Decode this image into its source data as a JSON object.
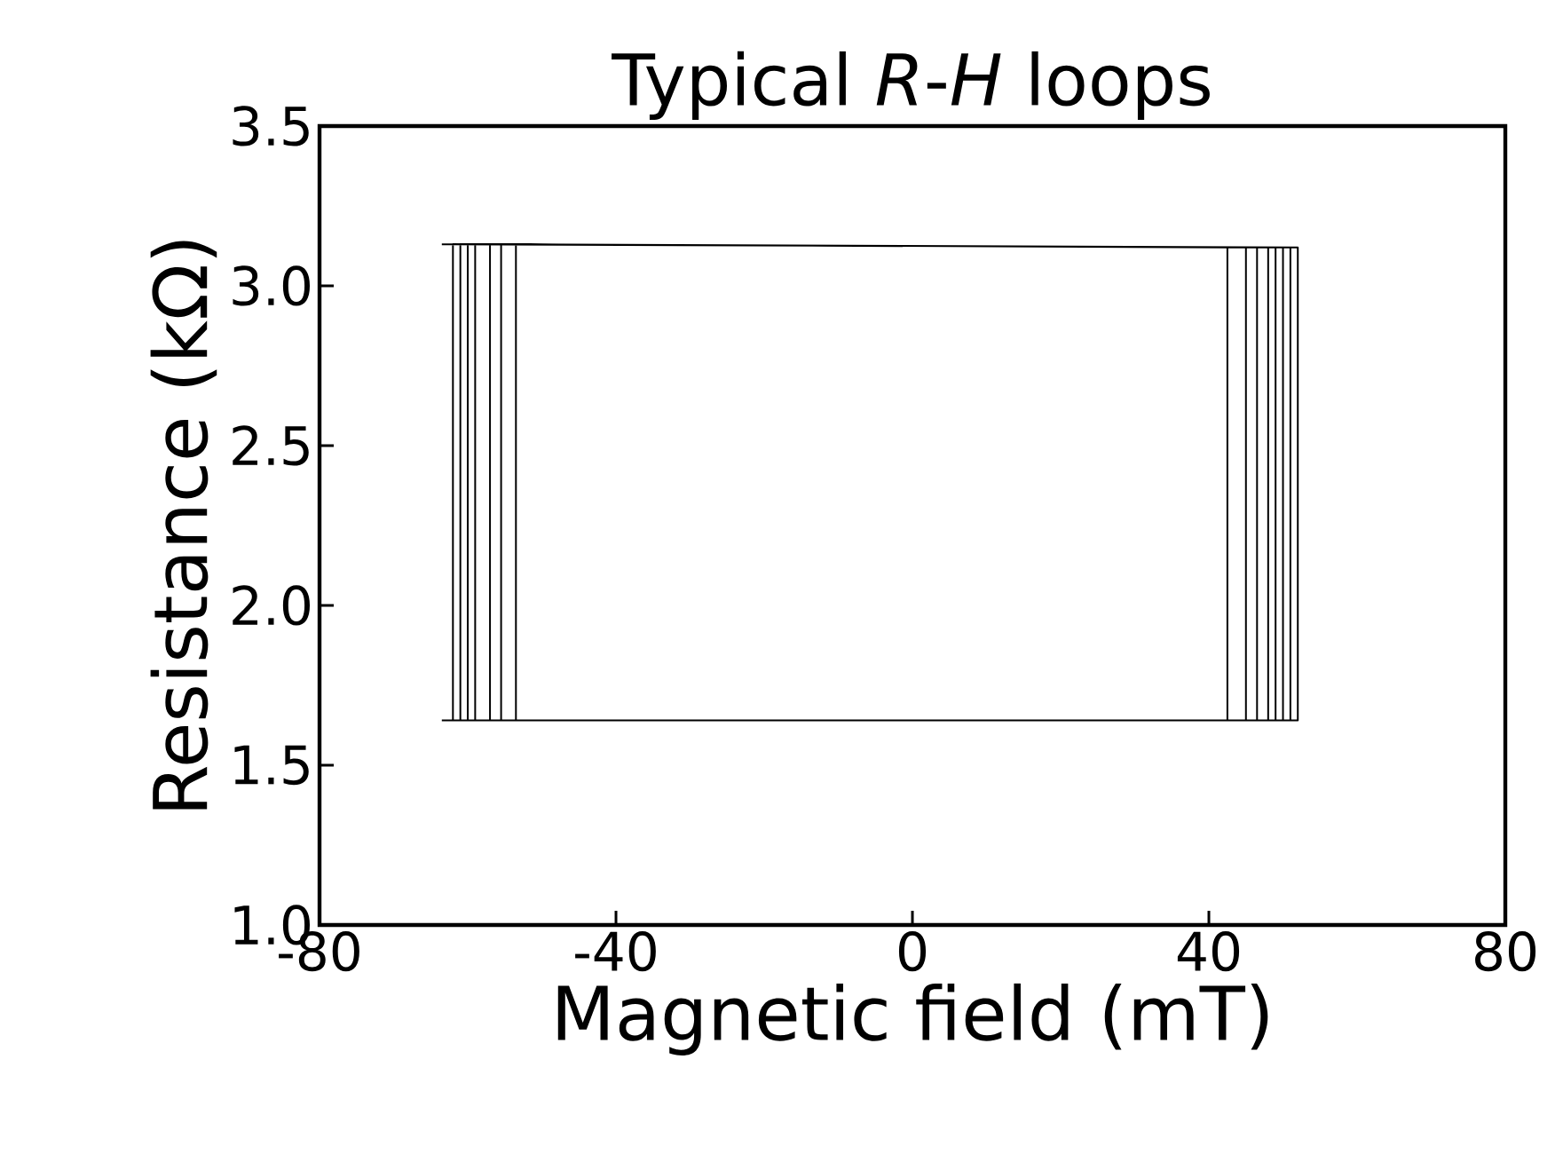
{
  "chart_data": {
    "type": "line",
    "title": "Typical *R*-*H* loops",
    "xlabel": "Magnetic field (mT)",
    "ylabel": "Resistance (kΩ)",
    "xlim": [
      -80,
      80
    ],
    "ylim": [
      1.0,
      3.5
    ],
    "xticks": [
      {
        "value": -80,
        "label": "-80"
      },
      {
        "value": -40,
        "label": "-40"
      },
      {
        "value": 0,
        "label": "0"
      },
      {
        "value": 40,
        "label": "40"
      },
      {
        "value": 80,
        "label": "80"
      }
    ],
    "yticks": [
      {
        "value": 1.0,
        "label": "1.0"
      },
      {
        "value": 1.5,
        "label": "1.5"
      },
      {
        "value": 2.0,
        "label": "2.0"
      },
      {
        "value": 2.5,
        "label": "2.5"
      },
      {
        "value": 3.0,
        "label": "3.0"
      },
      {
        "value": 3.5,
        "label": "3.5"
      }
    ],
    "series": [
      {
        "color": "#000000",
        "x": [
          -63.5,
          52,
          52,
          -62,
          -62,
          51,
          51,
          -61,
          -61,
          50,
          50,
          -60,
          -60,
          49,
          49,
          -59,
          -59,
          48,
          48,
          -57,
          -57,
          46.5,
          46.5,
          -55.5,
          -55.5,
          45,
          45,
          -53.5,
          -53.5,
          42.5,
          42.5,
          -63.5
        ],
        "values": [
          3.13,
          3.12,
          1.64,
          1.64,
          3.13,
          3.12,
          1.64,
          1.64,
          3.13,
          3.12,
          1.64,
          1.64,
          3.13,
          3.12,
          1.64,
          1.64,
          3.13,
          3.12,
          1.64,
          1.64,
          3.13,
          3.12,
          1.64,
          1.64,
          3.13,
          3.12,
          1.64,
          1.64,
          3.13,
          3.12,
          1.64,
          1.64
        ]
      }
    ]
  }
}
